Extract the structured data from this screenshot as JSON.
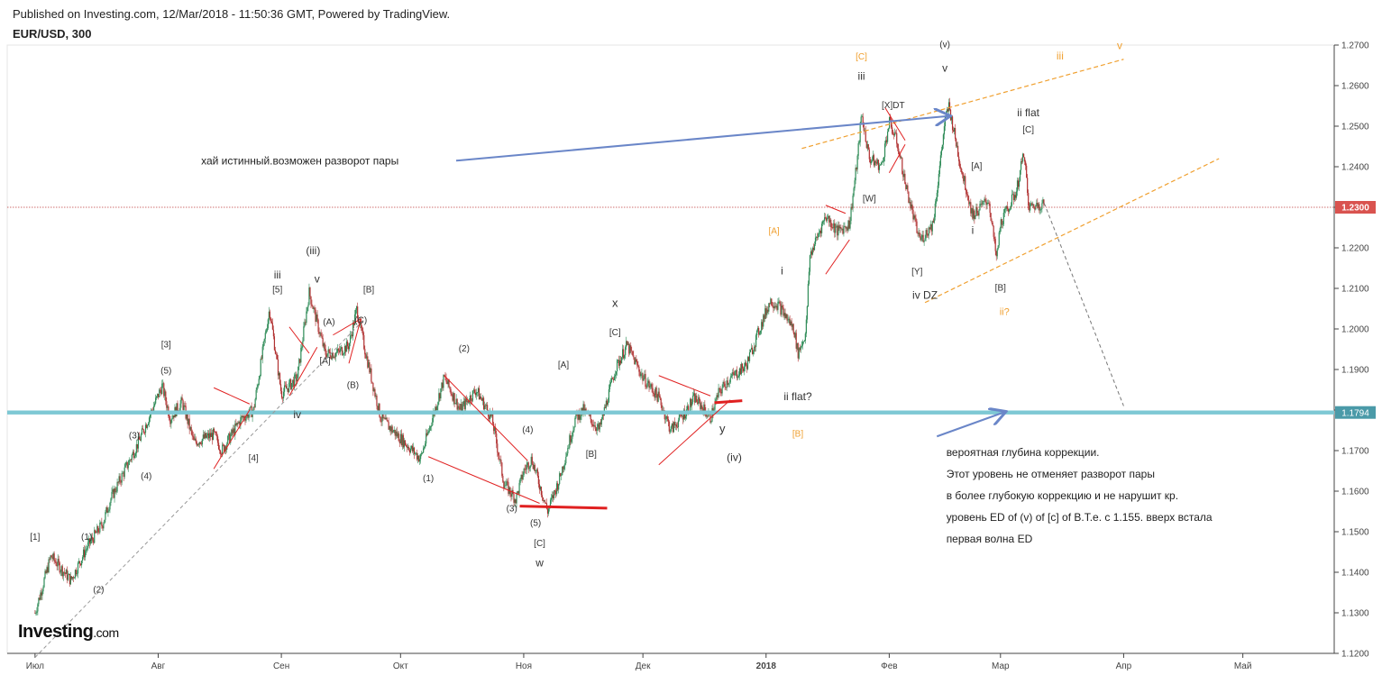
{
  "header": {
    "published": "Published on Investing.com, 12/Mar/2018 - 11:50:36 GMT, Powered by TradingView.",
    "symbol": "EUR/USD, 300"
  },
  "logo": {
    "main": "Investing",
    "suffix": ".com"
  },
  "colors": {
    "up": "#2e8b57",
    "down": "#b03030",
    "red_line": "#e02020",
    "blue_arrow": "#6a86c8",
    "orange": "#f0a030",
    "support": "#7ec8d4",
    "price_tag": "#d9534f",
    "support_tag": "#4a9aa8"
  },
  "chart_data": {
    "type": "candlestick",
    "title": "EUR/USD, 300",
    "ylim": [
      1.12,
      1.27
    ],
    "y_ticks": [
      "1.2700",
      "1.2600",
      "1.2500",
      "1.2400",
      "1.2300",
      "1.2200",
      "1.2100",
      "1.2000",
      "1.1900",
      "1.1800",
      "1.1700",
      "1.1600",
      "1.1500",
      "1.1400",
      "1.1300",
      "1.1200"
    ],
    "x_ticks": [
      "Июл",
      "Авг",
      "Сен",
      "Окт",
      "Ноя",
      "Дек",
      "2018",
      "Фев",
      "Мар",
      "Апр",
      "Май"
    ],
    "current_price": "1.2300",
    "support_level": "1.1794",
    "path": [
      [
        "2017-07-01",
        1.13
      ],
      [
        "2017-07-05",
        1.144
      ],
      [
        "2017-07-10",
        1.138
      ],
      [
        "2017-07-14",
        1.146
      ],
      [
        "2017-07-18",
        1.152
      ],
      [
        "2017-07-20",
        1.158
      ],
      [
        "2017-07-24",
        1.166
      ],
      [
        "2017-07-27",
        1.172
      ],
      [
        "2017-08-02",
        1.186
      ],
      [
        "2017-08-04",
        1.178
      ],
      [
        "2017-08-07",
        1.182
      ],
      [
        "2017-08-10",
        1.172
      ],
      [
        "2017-08-15",
        1.174
      ],
      [
        "2017-08-17",
        1.17
      ],
      [
        "2017-08-22",
        1.178
      ],
      [
        "2017-08-25",
        1.18
      ],
      [
        "2017-08-29",
        1.205
      ],
      [
        "2017-09-01",
        1.184
      ],
      [
        "2017-09-05",
        1.188
      ],
      [
        "2017-09-08",
        1.209
      ],
      [
        "2017-09-12",
        1.194
      ],
      [
        "2017-09-15",
        1.194
      ],
      [
        "2017-09-18",
        1.196
      ],
      [
        "2017-09-20",
        1.205
      ],
      [
        "2017-09-22",
        1.195
      ],
      [
        "2017-09-26",
        1.178
      ],
      [
        "2017-10-02",
        1.172
      ],
      [
        "2017-10-06",
        1.168
      ],
      [
        "2017-10-12",
        1.188
      ],
      [
        "2017-10-16",
        1.18
      ],
      [
        "2017-10-20",
        1.185
      ],
      [
        "2017-10-24",
        1.178
      ],
      [
        "2017-10-27",
        1.162
      ],
      [
        "2017-10-30",
        1.158
      ],
      [
        "2017-11-01",
        1.165
      ],
      [
        "2017-11-03",
        1.168
      ],
      [
        "2017-11-07",
        1.155
      ],
      [
        "2017-11-10",
        1.163
      ],
      [
        "2017-11-14",
        1.178
      ],
      [
        "2017-11-16",
        1.18
      ],
      [
        "2017-11-20",
        1.175
      ],
      [
        "2017-11-24",
        1.19
      ],
      [
        "2017-11-27",
        1.196
      ],
      [
        "2017-12-01",
        1.188
      ],
      [
        "2017-12-05",
        1.183
      ],
      [
        "2017-12-08",
        1.175
      ],
      [
        "2017-12-12",
        1.18
      ],
      [
        "2017-12-14",
        1.183
      ],
      [
        "2017-12-18",
        1.178
      ],
      [
        "2017-12-20",
        1.184
      ],
      [
        "2017-12-22",
        1.187
      ],
      [
        "2017-12-27",
        1.191
      ],
      [
        "2018-01-02",
        1.207
      ],
      [
        "2018-01-04",
        1.206
      ],
      [
        "2018-01-08",
        1.2
      ],
      [
        "2018-01-09",
        1.194
      ],
      [
        "2018-01-11",
        1.199
      ],
      [
        "2018-01-12",
        1.218
      ],
      [
        "2018-01-16",
        1.228
      ],
      [
        "2018-01-19",
        1.224
      ],
      [
        "2018-01-22",
        1.226
      ],
      [
        "2018-01-24",
        1.242
      ],
      [
        "2018-01-25",
        1.253
      ],
      [
        "2018-01-27",
        1.242
      ],
      [
        "2018-01-30",
        1.24
      ],
      [
        "2018-02-01",
        1.251
      ],
      [
        "2018-02-03",
        1.246
      ],
      [
        "2018-02-05",
        1.236
      ],
      [
        "2018-02-08",
        1.224
      ],
      [
        "2018-02-09",
        1.222
      ],
      [
        "2018-02-12",
        1.226
      ],
      [
        "2018-02-15",
        1.251
      ],
      [
        "2018-02-16",
        1.255
      ],
      [
        "2018-02-19",
        1.24
      ],
      [
        "2018-02-22",
        1.228
      ],
      [
        "2018-02-26",
        1.232
      ],
      [
        "2018-02-28",
        1.217
      ],
      [
        "2018-03-01",
        1.226
      ],
      [
        "2018-03-05",
        1.234
      ],
      [
        "2018-03-07",
        1.244
      ],
      [
        "2018-03-08",
        1.23
      ],
      [
        "2018-03-12",
        1.231
      ]
    ],
    "annotations": [
      {
        "t": "[1]",
        "d": "2017-07-01",
        "p": 1.148,
        "c": "black",
        "s": 10
      },
      {
        "t": "(1)",
        "d": "2017-07-14",
        "p": 1.148,
        "c": "black",
        "s": 10
      },
      {
        "t": "(2)",
        "d": "2017-07-17",
        "p": 1.135,
        "c": "black",
        "s": 10
      },
      {
        "t": "(3)",
        "d": "2017-07-26",
        "p": 1.173,
        "c": "black",
        "s": 10
      },
      {
        "t": "(4)",
        "d": "2017-07-29",
        "p": 1.163,
        "c": "black",
        "s": 10
      },
      {
        "t": "(5)",
        "d": "2017-08-03",
        "p": 1.189,
        "c": "black",
        "s": 10
      },
      {
        "t": "[3]",
        "d": "2017-08-03",
        "p": 1.1955,
        "c": "black",
        "s": 10
      },
      {
        "t": "[4]",
        "d": "2017-08-25",
        "p": 1.1675,
        "c": "black",
        "s": 10
      },
      {
        "t": "iv",
        "d": "2017-09-05",
        "p": 1.178,
        "c": "black",
        "s": 12
      },
      {
        "t": "[5]",
        "d": "2017-08-31",
        "p": 1.209,
        "c": "black",
        "s": 10
      },
      {
        "t": "iii",
        "d": "2017-08-31",
        "p": 1.2125,
        "c": "black",
        "s": 12
      },
      {
        "t": "(iii)",
        "d": "2017-09-09",
        "p": 1.2185,
        "c": "black",
        "s": 12
      },
      {
        "t": "v",
        "d": "2017-09-10",
        "p": 1.2115,
        "c": "black",
        "s": 12
      },
      {
        "t": "(A)",
        "d": "2017-09-13",
        "p": 1.201,
        "c": "black",
        "s": 10
      },
      {
        "t": "[A]",
        "d": "2017-09-12",
        "p": 1.1915,
        "c": "black",
        "s": 10
      },
      {
        "t": "(C)",
        "d": "2017-09-21",
        "p": 1.2015,
        "c": "black",
        "s": 10
      },
      {
        "t": "(B)",
        "d": "2017-09-19",
        "p": 1.1855,
        "c": "black",
        "s": 10
      },
      {
        "t": "[B]",
        "d": "2017-09-23",
        "p": 1.209,
        "c": "black",
        "s": 10
      },
      {
        "t": "(1)",
        "d": "2017-10-08",
        "p": 1.1625,
        "c": "black",
        "s": 10
      },
      {
        "t": "(2)",
        "d": "2017-10-17",
        "p": 1.1945,
        "c": "black",
        "s": 10
      },
      {
        "t": "(3)",
        "d": "2017-10-29",
        "p": 1.155,
        "c": "black",
        "s": 10
      },
      {
        "t": "(4)",
        "d": "2017-11-02",
        "p": 1.1745,
        "c": "black",
        "s": 10
      },
      {
        "t": "(5)",
        "d": "2017-11-04",
        "p": 1.1515,
        "c": "black",
        "s": 10
      },
      {
        "t": "[C]",
        "d": "2017-11-05",
        "p": 1.1465,
        "c": "black",
        "s": 10
      },
      {
        "t": "w",
        "d": "2017-11-05",
        "p": 1.1415,
        "c": "black",
        "s": 12
      },
      {
        "t": "[A]",
        "d": "2017-11-11",
        "p": 1.1905,
        "c": "black",
        "s": 10
      },
      {
        "t": "[B]",
        "d": "2017-11-18",
        "p": 1.1685,
        "c": "black",
        "s": 10
      },
      {
        "t": "[C]",
        "d": "2017-11-24",
        "p": 1.1985,
        "c": "black",
        "s": 10
      },
      {
        "t": "x",
        "d": "2017-11-24",
        "p": 1.2055,
        "c": "black",
        "s": 13
      },
      {
        "t": "y",
        "d": "2017-12-21",
        "p": 1.1745,
        "c": "black",
        "s": 13
      },
      {
        "t": "(iv)",
        "d": "2017-12-24",
        "p": 1.1675,
        "c": "black",
        "s": 12
      },
      {
        "t": "i",
        "d": "2018-01-05",
        "p": 1.2135,
        "c": "black",
        "s": 12
      },
      {
        "t": "ii flat?",
        "d": "2018-01-09",
        "p": 1.1825,
        "c": "black",
        "s": 12
      },
      {
        "t": "[B]",
        "d": "2018-01-09",
        "p": 1.1735,
        "c": "orange",
        "s": 10
      },
      {
        "t": "[A]",
        "d": "2018-01-03",
        "p": 1.2235,
        "c": "orange",
        "s": 10
      },
      {
        "t": "[W]",
        "d": "2018-01-27",
        "p": 1.2315,
        "c": "black",
        "s": 10
      },
      {
        "t": "iii",
        "d": "2018-01-25",
        "p": 1.2615,
        "c": "black",
        "s": 12
      },
      {
        "t": "[C]",
        "d": "2018-01-25",
        "p": 1.2665,
        "c": "orange",
        "s": 10
      },
      {
        "t": "[X]DT",
        "d": "2018-02-02",
        "p": 1.2545,
        "c": "black",
        "s": 10
      },
      {
        "t": "[Y]",
        "d": "2018-02-08",
        "p": 1.2135,
        "c": "black",
        "s": 10
      },
      {
        "t": "iv DZ",
        "d": "2018-02-10",
        "p": 1.2075,
        "c": "black",
        "s": 12
      },
      {
        "t": "(v)",
        "d": "2018-02-15",
        "p": 1.2695,
        "c": "black",
        "s": 10
      },
      {
        "t": "v",
        "d": "2018-02-15",
        "p": 1.2635,
        "c": "black",
        "s": 12
      },
      {
        "t": "[A]",
        "d": "2018-02-23",
        "p": 1.2395,
        "c": "black",
        "s": 10
      },
      {
        "t": "i",
        "d": "2018-02-22",
        "p": 1.2235,
        "c": "black",
        "s": 12
      },
      {
        "t": "[B]",
        "d": "2018-03-01",
        "p": 1.2095,
        "c": "black",
        "s": 10
      },
      {
        "t": "ii?",
        "d": "2018-03-02",
        "p": 1.2035,
        "c": "orange",
        "s": 11
      },
      {
        "t": "ii flat",
        "d": "2018-03-08",
        "p": 1.2525,
        "c": "black",
        "s": 12
      },
      {
        "t": "[C]",
        "d": "2018-03-08",
        "p": 1.2485,
        "c": "black",
        "s": 10
      },
      {
        "t": "iii",
        "d": "2018-03-16",
        "p": 1.2665,
        "c": "orange",
        "s": 12
      },
      {
        "t": "v",
        "d": "2018-03-31",
        "p": 1.269,
        "c": "orange",
        "s": 12
      }
    ],
    "notes": {
      "high": "хай истинный.возможен разворот пары",
      "lines": [
        "вероятная глубина коррекции.",
        "Этот уровень не отменяет разворот пары",
        "в более глубокую коррекцию и не нарушит кр.",
        "уровень ED of (v) of [c] of B.T.e. c 1.155. вверх встала",
        "первая волна ED"
      ]
    }
  }
}
